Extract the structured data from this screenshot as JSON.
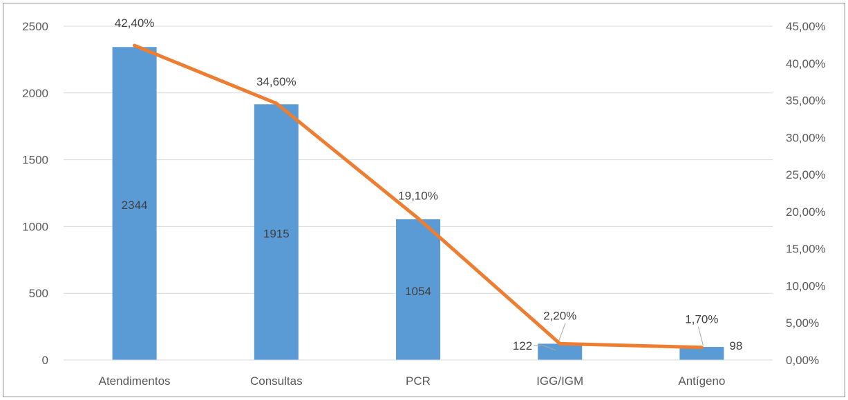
{
  "chart_data": {
    "type": "bar",
    "categories": [
      "Atendimentos",
      "Consultas",
      "PCR",
      "IGG/IGM",
      "Antígeno"
    ],
    "series": [
      {
        "type": "bar",
        "axis": "left",
        "values": [
          2344,
          1915,
          1054,
          122,
          98
        ],
        "labels": [
          "2344",
          "1915",
          "1054",
          "122",
          "98"
        ],
        "color": "#5b9bd5"
      },
      {
        "type": "line",
        "axis": "right",
        "values": [
          42.4,
          34.6,
          19.1,
          2.2,
          1.7
        ],
        "labels": [
          "42,40%",
          "34,60%",
          "19,10%",
          "2,20%",
          "1,70%"
        ],
        "color": "#ed7d31"
      }
    ],
    "y_left": {
      "min": 0,
      "max": 2500,
      "ticks": [
        0,
        500,
        1000,
        1500,
        2000,
        2500
      ],
      "tick_labels": [
        "0",
        "500",
        "1000",
        "1500",
        "2000",
        "2500"
      ]
    },
    "y_right": {
      "min": 0,
      "max": 45,
      "ticks": [
        0,
        5,
        10,
        15,
        20,
        25,
        30,
        35,
        40,
        45
      ],
      "tick_labels": [
        "0,00%",
        "5,00%",
        "10,00%",
        "15,00%",
        "20,00%",
        "25,00%",
        "30,00%",
        "35,00%",
        "40,00%",
        "45,00%"
      ]
    },
    "grid": true,
    "legend": "none"
  }
}
